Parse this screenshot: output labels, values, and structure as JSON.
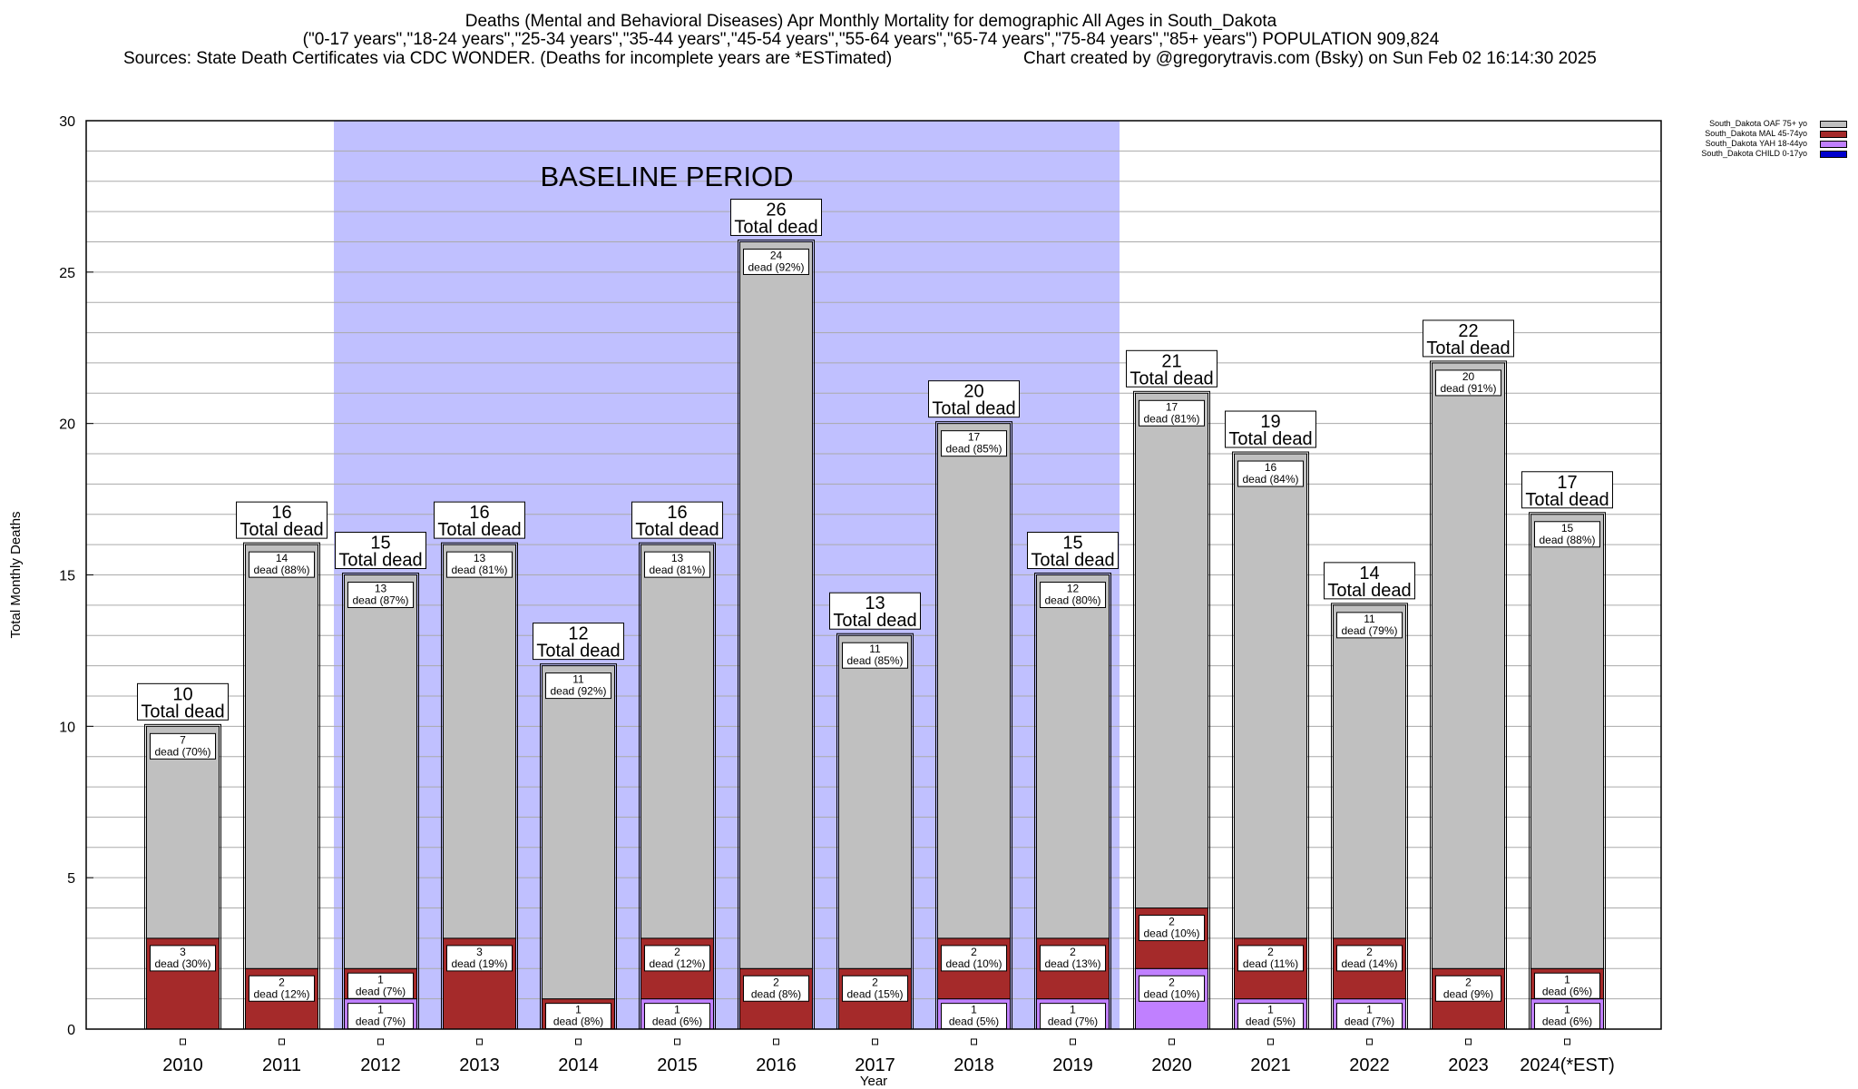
{
  "title": {
    "line1": "Deaths (Mental and Behavioral Diseases) Apr Monthly Mortality for demographic All Ages in South_Dakota",
    "line2": "(\"0-17 years\",\"18-24 years\",\"25-34 years\",\"35-44 years\",\"45-54 years\",\"55-64 years\",\"65-74 years\",\"75-84 years\",\"85+ years\") POPULATION 909,824",
    "line3_left": "Sources: State Death Certificates via CDC WONDER. (Deaths for incomplete years are *ESTimated)",
    "line3_right": "Chart created by @gregorytravis.com (Bsky) on Sun Feb 02 16:14:30 2025"
  },
  "legend": [
    {
      "name": "South_Dakota OAF 75+ yo",
      "color": "#c0c0c0"
    },
    {
      "name": "South_Dakota MAL 45-74yo",
      "color": "#a52a2a"
    },
    {
      "name": "South_Dakota YAH 18-44yo",
      "color": "#c080ff"
    },
    {
      "name": "South_Dakota CHILD 0-17yo",
      "color": "#0000cd"
    }
  ],
  "chart_data": {
    "type": "bar",
    "stacked": true,
    "xlabel": "Year",
    "ylabel": "Total Monthly Deaths",
    "ylim": [
      0,
      30
    ],
    "y_ticks": [
      0,
      5,
      10,
      15,
      20,
      25,
      30
    ],
    "grid": true,
    "legend_position": "top-right",
    "baseline_period": {
      "label": "BASELINE PERIOD",
      "from": "2012",
      "to": "2019",
      "color": "#c0c0ff"
    },
    "total_label_suffix": "Total dead",
    "categories": [
      "2010",
      "2011",
      "2012",
      "2013",
      "2014",
      "2015",
      "2016",
      "2017",
      "2018",
      "2019",
      "2020",
      "2021",
      "2022",
      "2023",
      "2024(*EST)"
    ],
    "totals": [
      10,
      16,
      15,
      16,
      12,
      16,
      26,
      13,
      20,
      15,
      21,
      19,
      14,
      22,
      17
    ],
    "series": [
      {
        "name": "South_Dakota CHILD 0-17yo",
        "color": "#0000cd",
        "values": [
          0,
          0,
          0,
          0,
          0,
          0,
          0,
          0,
          0,
          0,
          0,
          0,
          0,
          0,
          0
        ],
        "labels": [
          "",
          "",
          "",
          "",
          "",
          "",
          "",
          "",
          "",
          "",
          "",
          "",
          "",
          "",
          ""
        ]
      },
      {
        "name": "South_Dakota YAH 18-44yo",
        "color": "#c080ff",
        "values": [
          0,
          0,
          1,
          0,
          0,
          1,
          0,
          0,
          1,
          1,
          2,
          1,
          1,
          0,
          1
        ],
        "labels": [
          "",
          "",
          "(7%)",
          "",
          "",
          "(6%)",
          "",
          "",
          "(5%)",
          "(7%)",
          "(10%)",
          "(5%)",
          "(7%)",
          "",
          "(6%)"
        ]
      },
      {
        "name": "South_Dakota MAL 45-74yo",
        "color": "#a52a2a",
        "values": [
          3,
          2,
          1,
          3,
          1,
          2,
          2,
          2,
          2,
          2,
          2,
          2,
          2,
          2,
          1
        ],
        "labels": [
          "(30%)",
          "(12%)",
          "(7%)",
          "(19%)",
          "(8%)",
          "(12%)",
          "(8%)",
          "(15%)",
          "(10%)",
          "(13%)",
          "(10%)",
          "(11%)",
          "(14%)",
          "(9%)",
          "(6%)"
        ]
      },
      {
        "name": "South_Dakota OAF 75+ yo",
        "color": "#c0c0c0",
        "values": [
          7,
          14,
          13,
          13,
          11,
          13,
          24,
          11,
          17,
          12,
          17,
          16,
          11,
          20,
          15
        ],
        "labels": [
          "(70%)",
          "(88%)",
          "(87%)",
          "(81%)",
          "(92%)",
          "(81%)",
          "(92%)",
          "(85%)",
          "(85%)",
          "(80%)",
          "(81%)",
          "(84%)",
          "(79%)",
          "(91%)",
          "(88%)"
        ]
      }
    ]
  }
}
